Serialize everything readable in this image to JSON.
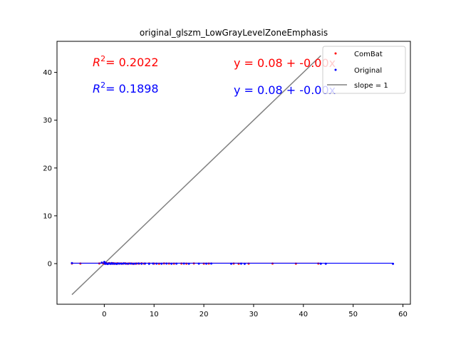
{
  "chart_data": {
    "type": "scatter",
    "title": "original_glszm_LowGrayLevelZoneEmphasis",
    "xlabel": "",
    "ylabel": "",
    "xlim": [
      -9.5,
      61.5
    ],
    "ylim": [
      -8.5,
      46.5
    ],
    "xticks": [
      0,
      10,
      20,
      30,
      40,
      50,
      60
    ],
    "yticks": [
      0,
      10,
      20,
      30,
      40
    ],
    "grid": false,
    "legend_position": "top-right",
    "series": [
      {
        "name": "ComBat",
        "color": "#ff0000",
        "x": [
          -6.5,
          -4.8,
          -1.0,
          -0.2,
          0.0,
          0.1,
          0.2,
          0.3,
          0.4,
          0.5,
          0.6,
          0.8,
          1.0,
          1.2,
          1.4,
          1.6,
          1.8,
          2.0,
          2.3,
          2.6,
          3.0,
          3.4,
          3.8,
          4.2,
          4.6,
          5.0,
          5.5,
          6.0,
          6.5,
          7.0,
          7.5,
          8.0,
          9.0,
          10.0,
          11.0,
          12.0,
          13.0,
          14.0,
          15.5,
          16.5,
          18.0,
          20.0,
          21.0,
          26.0,
          27.0,
          29.0,
          33.8,
          38.5,
          43.0
        ],
        "y": [
          0.02,
          0.01,
          0.03,
          0.05,
          0.15,
          -0.02,
          0.08,
          0.12,
          0.0,
          0.06,
          -0.05,
          0.04,
          0.1,
          -0.03,
          0.05,
          0.0,
          0.07,
          -0.04,
          0.02,
          0.06,
          -0.01,
          0.03,
          0.0,
          0.05,
          -0.02,
          0.04,
          0.01,
          -0.03,
          0.02,
          0.0,
          0.05,
          -0.01,
          0.03,
          0.0,
          -0.02,
          0.04,
          0.01,
          0.0,
          0.02,
          -0.01,
          0.03,
          0.0,
          0.01,
          0.02,
          -0.02,
          0.0,
          0.01,
          0.0,
          0.02
        ]
      },
      {
        "name": "Original",
        "color": "#0000ff",
        "x": [
          -6.5,
          -0.5,
          0.0,
          0.1,
          0.2,
          0.3,
          0.5,
          0.7,
          0.9,
          1.1,
          1.3,
          1.5,
          1.7,
          2.0,
          2.2,
          2.5,
          2.8,
          3.1,
          3.5,
          3.9,
          4.3,
          4.8,
          5.3,
          5.8,
          6.3,
          6.9,
          7.5,
          8.2,
          9.0,
          9.8,
          10.5,
          11.5,
          12.5,
          13.5,
          14.5,
          16.0,
          17.0,
          19.0,
          20.5,
          21.5,
          25.5,
          27.5,
          28.2,
          43.5,
          44.5,
          58.0
        ],
        "y": [
          0.1,
          0.2,
          0.35,
          0.05,
          -0.05,
          0.12,
          0.0,
          -0.08,
          0.06,
          0.02,
          -0.04,
          0.1,
          -0.02,
          0.04,
          0.0,
          -0.06,
          0.03,
          0.01,
          -0.03,
          0.05,
          0.0,
          -0.02,
          0.02,
          -0.05,
          0.0,
          0.03,
          -0.02,
          0.01,
          -0.04,
          0.02,
          0.0,
          -0.03,
          0.01,
          -0.02,
          0.0,
          0.02,
          -0.03,
          0.0,
          -0.01,
          0.02,
          -0.02,
          0.0,
          -0.04,
          -0.03,
          -0.02,
          -0.05
        ]
      }
    ],
    "fit_lines": [
      {
        "name": "ComBat fit",
        "color": "#ff0000",
        "intercept": 0.08,
        "slope": 0.0,
        "x_range": [
          -6.5,
          43.5
        ]
      },
      {
        "name": "Original fit",
        "color": "#0000ff",
        "intercept": 0.08,
        "slope": 0.0,
        "x_range": [
          -6.5,
          58.0
        ]
      }
    ],
    "reference_line": {
      "name": "slope = 1",
      "color": "#808080",
      "x_range": [
        -6.5,
        43.5
      ]
    },
    "annotations": [
      {
        "id": "r2_combat",
        "text": "= 0.2022",
        "prefix": "R",
        "sup": "2",
        "color": "#ff0000"
      },
      {
        "id": "r2_original",
        "text": "= 0.1898",
        "prefix": "R",
        "sup": "2",
        "color": "#0000ff"
      },
      {
        "id": "eq_combat",
        "text": "y = 0.08 + -0.00x",
        "color": "#ff0000"
      },
      {
        "id": "eq_original",
        "text": "y = 0.08 + -0.00x",
        "color": "#0000ff"
      }
    ]
  }
}
